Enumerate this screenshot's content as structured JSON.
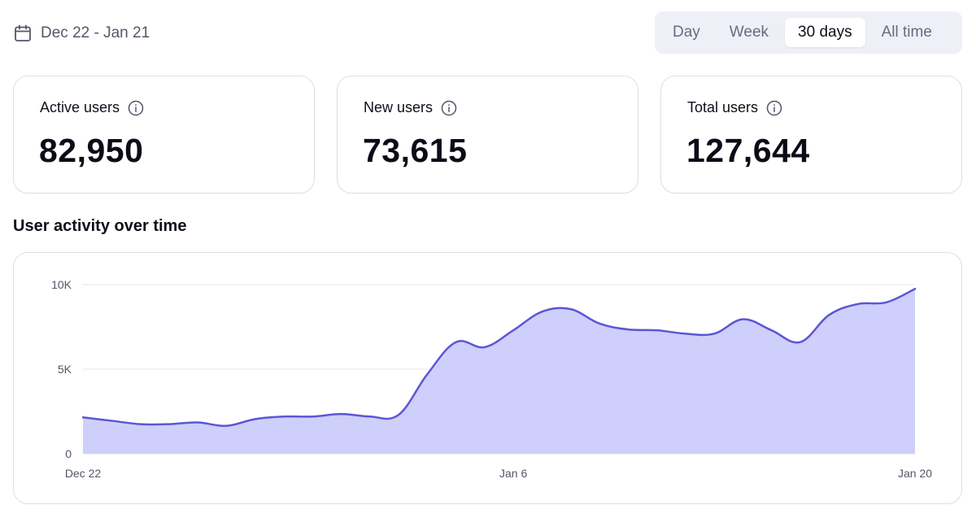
{
  "header": {
    "date_range": "Dec 22 - Jan 21",
    "range_options": [
      {
        "label": "Day",
        "active": false
      },
      {
        "label": "Week",
        "active": false
      },
      {
        "label": "30 days",
        "active": true
      },
      {
        "label": "All time",
        "active": false
      }
    ]
  },
  "stats": [
    {
      "label": "Active users",
      "value": "82,950"
    },
    {
      "label": "New users",
      "value": "73,615"
    },
    {
      "label": "Total users",
      "value": "127,644"
    }
  ],
  "section_title": "User activity over time",
  "colors": {
    "line": "#5b56d6",
    "fill": "#cfcffb",
    "grid": "#e4e4ec"
  },
  "chart_data": {
    "type": "area",
    "title": "User activity over time",
    "xlabel": "",
    "ylabel": "",
    "x_start": "Dec 22",
    "x_end": "Jan 20",
    "x_ticks": [
      {
        "day": 0,
        "label": "Dec 22"
      },
      {
        "day": 15,
        "label": "Jan 6"
      },
      {
        "day": 29,
        "label": "Jan 20"
      }
    ],
    "y_ticks": [
      {
        "value": 0,
        "label": "0"
      },
      {
        "value": 5000,
        "label": "5K"
      },
      {
        "value": 10000,
        "label": "10K"
      }
    ],
    "ylim": [
      0,
      10000
    ],
    "grid": true,
    "series": [
      {
        "name": "User activity",
        "values": [
          2150,
          1950,
          1750,
          1750,
          1850,
          1650,
          2050,
          2200,
          2200,
          2350,
          2200,
          2300,
          4700,
          6600,
          6300,
          7300,
          8400,
          8550,
          7700,
          7350,
          7300,
          7100,
          7100,
          7950,
          7300,
          6600,
          8200,
          8850,
          8950,
          9750
        ]
      }
    ]
  }
}
